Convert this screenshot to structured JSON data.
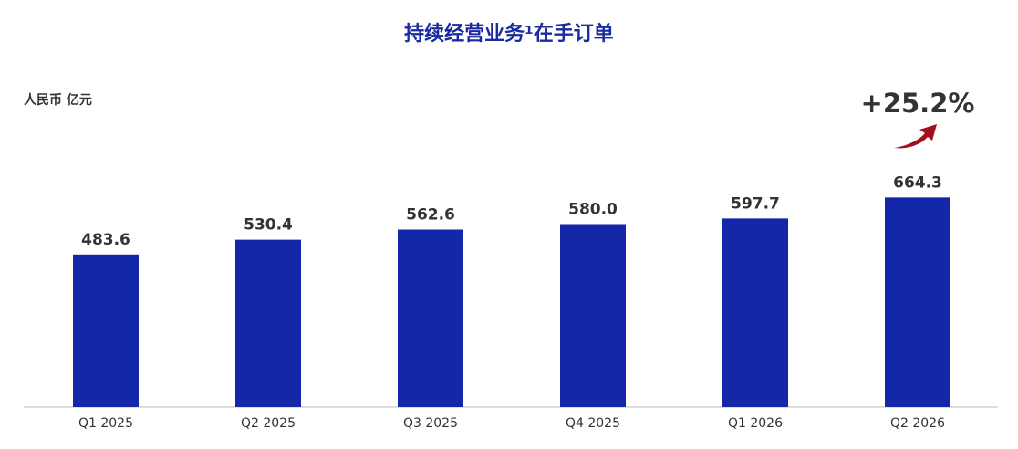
{
  "chart_data": {
    "type": "bar",
    "title": "持续经营业务¹在手订单",
    "unit_label": "人民币 亿元",
    "annotation": "+25.2%",
    "categories": [
      "Q1 2025",
      "Q2 2025",
      "Q3 2025",
      "Q4 2025",
      "Q1 2026",
      "Q2 2026"
    ],
    "values": [
      483.6,
      530.4,
      562.6,
      580.0,
      597.7,
      664.3
    ],
    "value_labels": [
      "483.6",
      "530.4",
      "562.6",
      "580.0",
      "597.7",
      "664.3"
    ],
    "color": "#1327a8",
    "ylim": [
      0,
      700
    ]
  }
}
